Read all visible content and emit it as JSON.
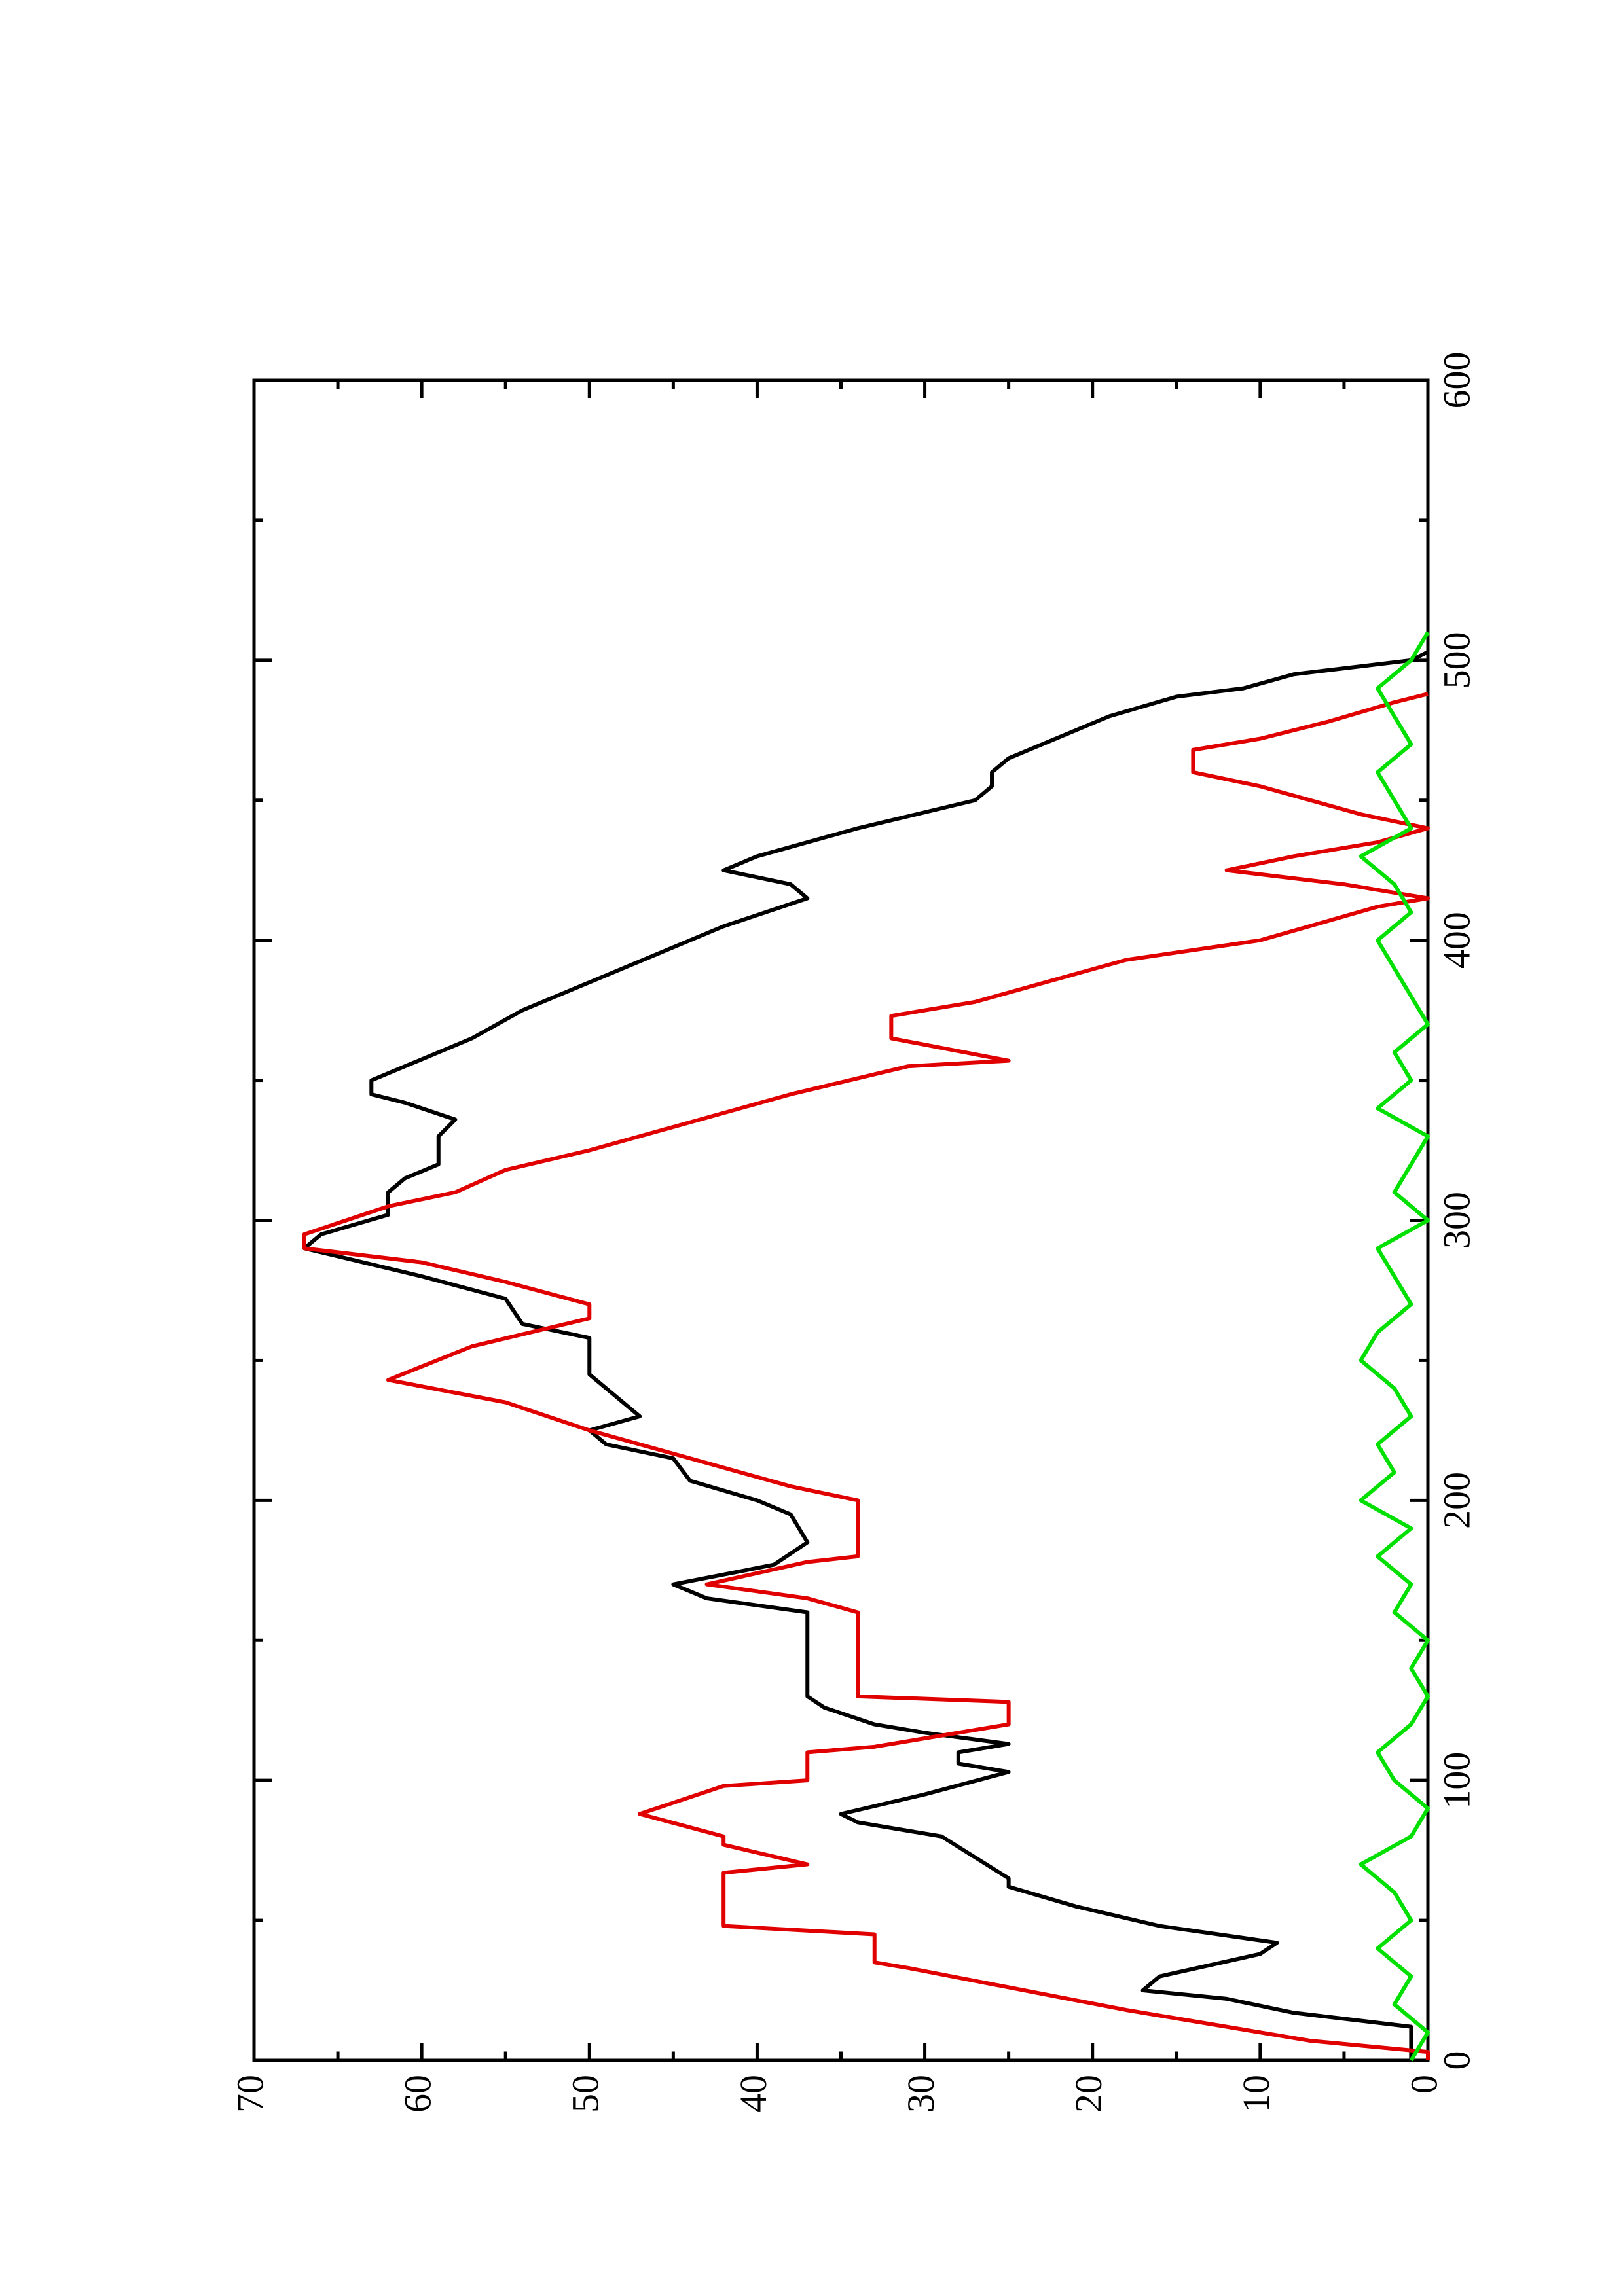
{
  "chart_data": {
    "type": "line",
    "xlim": [
      0,
      600
    ],
    "xticks": [
      0,
      100,
      200,
      300,
      400,
      500,
      600
    ],
    "ylim": [
      0,
      70
    ],
    "yticks": [
      0,
      10,
      20,
      30,
      40,
      50,
      60,
      70
    ],
    "series": [
      {
        "color": "#000000",
        "x": [
          0,
          12,
          17,
          22,
          25,
          30,
          38,
          42,
          48,
          55,
          62,
          65,
          80,
          85,
          88,
          95,
          103,
          106,
          110,
          113,
          117,
          120,
          126,
          130,
          160,
          165,
          170,
          177,
          185,
          195,
          200,
          207,
          215,
          220,
          225,
          230,
          235,
          245,
          258,
          263,
          272,
          280,
          290,
          295,
          302,
          310,
          315,
          320,
          330,
          336,
          342,
          345,
          350,
          355,
          365,
          375,
          385,
          395,
          405,
          415,
          420,
          425,
          430,
          440,
          450,
          455,
          460,
          465,
          470,
          480,
          487,
          490,
          495,
          500,
          503
        ],
        "values": [
          1,
          1,
          8,
          12,
          17,
          16,
          10,
          9,
          16,
          21,
          25,
          25,
          29,
          34,
          35,
          30,
          25,
          28,
          28,
          25,
          30,
          33,
          36,
          37,
          37,
          43,
          45,
          39,
          37,
          38,
          40,
          44,
          45,
          49,
          50,
          47,
          48,
          50,
          50,
          54,
          55,
          60,
          67,
          66,
          62,
          62,
          61,
          59,
          59,
          58,
          61,
          63,
          63,
          61,
          57,
          54,
          50,
          46,
          42,
          37,
          38,
          42,
          40,
          34,
          27,
          26,
          26,
          25,
          23,
          19,
          15,
          11,
          8,
          1,
          0
        ]
      },
      {
        "color": "#e00000",
        "x": [
          0,
          3,
          7,
          18,
          33,
          35,
          45,
          48,
          67,
          70,
          77,
          80,
          88,
          98,
          100,
          110,
          112,
          120,
          128,
          130,
          160,
          165,
          170,
          178,
          180,
          200,
          205,
          215,
          225,
          235,
          243,
          255,
          265,
          270,
          278,
          285,
          290,
          295,
          305,
          310,
          318,
          325,
          335,
          345,
          355,
          357,
          365,
          373,
          378,
          393,
          400,
          412,
          415,
          420,
          425,
          430,
          435,
          440,
          445,
          455,
          460,
          468,
          472,
          478,
          485,
          488
        ],
        "values": [
          0,
          0,
          7,
          18,
          31,
          33,
          33,
          42,
          42,
          37,
          42,
          42,
          47,
          42,
          37,
          37,
          33,
          25,
          25,
          34,
          34,
          37,
          43,
          37,
          34,
          34,
          38,
          44,
          50,
          55,
          62,
          57,
          50,
          50,
          55,
          60,
          67,
          67,
          62,
          58,
          55,
          50,
          44,
          38,
          31,
          25,
          32,
          32,
          27,
          18,
          10,
          3,
          0,
          5,
          12,
          8,
          3,
          0,
          4,
          10,
          14,
          14,
          10,
          6,
          2,
          0
        ]
      },
      {
        "color": "#00e000",
        "x": [
          0,
          10,
          20,
          30,
          40,
          50,
          60,
          70,
          80,
          90,
          100,
          110,
          120,
          130,
          140,
          150,
          160,
          170,
          180,
          190,
          200,
          210,
          220,
          230,
          240,
          250,
          260,
          270,
          280,
          290,
          300,
          310,
          320,
          330,
          340,
          350,
          360,
          370,
          380,
          390,
          400,
          410,
          420,
          430,
          440,
          450,
          460,
          470,
          480,
          490,
          500,
          510
        ],
        "values": [
          1,
          0,
          2,
          1,
          3,
          1,
          2,
          4,
          1,
          0,
          2,
          3,
          1,
          0,
          1,
          0,
          2,
          1,
          3,
          1,
          4,
          2,
          3,
          1,
          2,
          4,
          3,
          1,
          2,
          3,
          0,
          2,
          1,
          0,
          3,
          1,
          2,
          0,
          1,
          2,
          3,
          1,
          2,
          4,
          1,
          2,
          3,
          1,
          2,
          3,
          1,
          0
        ]
      }
    ]
  }
}
